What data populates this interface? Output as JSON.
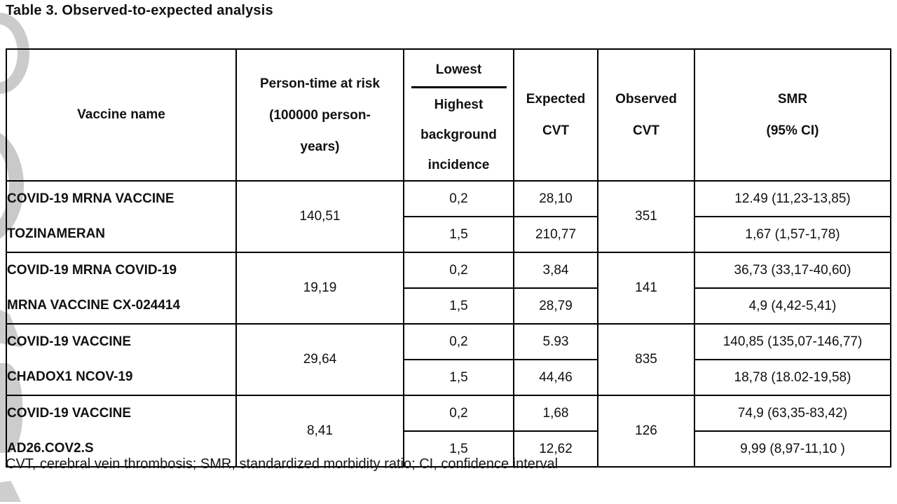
{
  "title": "Table 3. Observed-to-expected analysis",
  "footnote": "CVT, cerebral vein thrombosis; SMR, standardized morbidity ratio; CI, confidence interval",
  "colors": {
    "border": "#000000",
    "watermark": "#cccccc",
    "text": "#111111"
  },
  "table": {
    "headers": {
      "vaccine": "Vaccine name",
      "person_time": "Person-time at risk\n(100000 person-\nyears)",
      "incidence_top": "Lowest",
      "incidence_bottom": "Highest\nbackground\nincidence",
      "expected": "Expected\nCVT",
      "observed": "Observed\nCVT",
      "smr": "SMR\n(95% CI)"
    },
    "rows": [
      {
        "name": "COVID-19 MRNA VACCINE\nTOZINAMERAN",
        "person_time": "140,51",
        "observed": "351",
        "sub": [
          {
            "incidence": "0,2",
            "expected": "28,10",
            "smr": "12.49 (11,23-13,85)"
          },
          {
            "incidence": "1,5",
            "expected": "210,77",
            "smr": "1,67 (1,57-1,78)"
          }
        ]
      },
      {
        "name": "COVID-19 MRNA COVID-19\nMRNA VACCINE CX-024414",
        "person_time": "19,19",
        "observed": "141",
        "sub": [
          {
            "incidence": "0,2",
            "expected": "3,84",
            "smr": "36,73 (33,17-40,60)"
          },
          {
            "incidence": "1,5",
            "expected": "28,79",
            "smr": "4,9 (4,42-5,41)"
          }
        ]
      },
      {
        "name": "COVID-19 VACCINE\nCHADOX1 NCOV-19",
        "person_time": "29,64",
        "observed": "835",
        "sub": [
          {
            "incidence": "0,2",
            "expected": "5.93",
            "smr": "140,85 (135,07-146,77)"
          },
          {
            "incidence": "1,5",
            "expected": "44,46",
            "smr": "18,78 (18.02-19,58)"
          }
        ]
      },
      {
        "name": "COVID-19 VACCINE\nAD26.COV2.S",
        "person_time": "8,41",
        "observed": "126",
        "sub": [
          {
            "incidence": "0,2",
            "expected": "1,68",
            "smr": "74,9 (63,35-83,42)"
          },
          {
            "incidence": "1,5",
            "expected": "12,62",
            "smr": "9,99 (8,97-11,10 )"
          }
        ]
      }
    ]
  }
}
